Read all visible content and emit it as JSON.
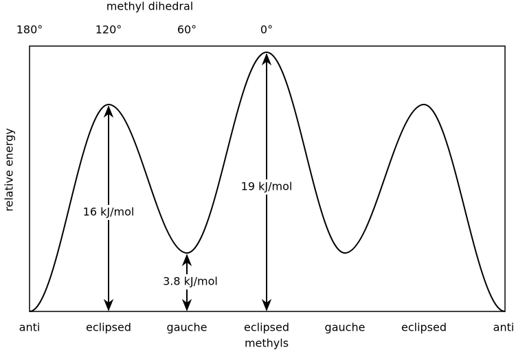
{
  "axis_title": "methyl dihedral",
  "dihedral_ticks": [
    "180°",
    "120°",
    "60°",
    "0°"
  ],
  "y_label": "relative energy",
  "conformations": [
    "anti",
    "eclipsed",
    "gauche",
    "eclipsed",
    "gauche",
    "eclipsed",
    "anti"
  ],
  "conformation_note": "methyls",
  "barriers": [
    "16 kJ/mol",
    "3.8 kJ/mol",
    "19 kJ/mol"
  ]
}
